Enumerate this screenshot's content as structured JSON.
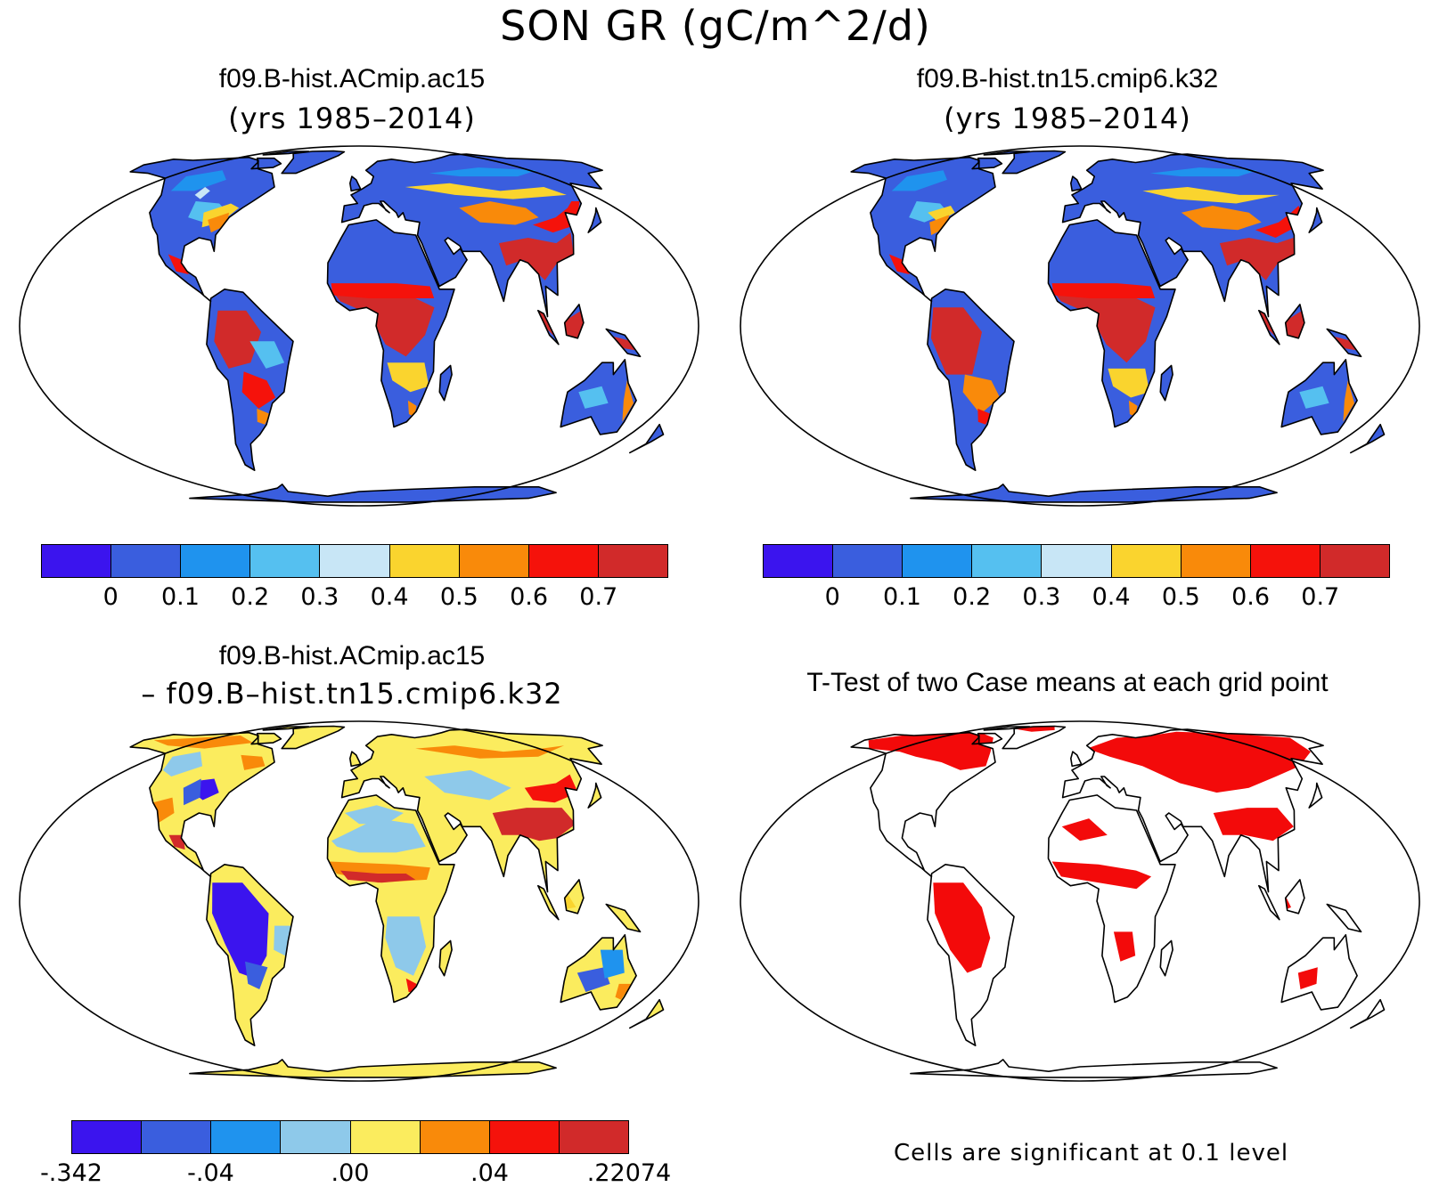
{
  "suptitle": "SON GR (gC/m^2/d)",
  "panels": {
    "top_left": {
      "title": "f09.B-hist.ACmip.ac15",
      "subtitle": "(yrs 1985–2014)"
    },
    "top_right": {
      "title": "f09.B-hist.tn15.cmip6.k32",
      "subtitle": "(yrs 1985–2014)"
    },
    "bottom_left": {
      "title": "f09.B-hist.ACmip.ac15",
      "subtitle": "– f09.B–hist.tn15.cmip6.k32"
    },
    "bottom_right": {
      "title": "T-Test of two Case means at each grid point",
      "note": "Cells are significant at 0.1 level"
    }
  },
  "colorbar_main": {
    "colors": [
      "#3b14ee",
      "#3a5ede",
      "#1f93ee",
      "#55c0f0",
      "#c8e6f6",
      "#fad42e",
      "#f98a0a",
      "#f5120b",
      "#d12a2a"
    ],
    "ticks": [
      "0",
      "0.1",
      "0.2",
      "0.3",
      "0.4",
      "0.5",
      "0.6",
      "0.7"
    ]
  },
  "colorbar_diff": {
    "colors": [
      "#3b14ee",
      "#3a5ede",
      "#1f93ee",
      "#8ec9ea",
      "#fbec5e",
      "#f98a0a",
      "#f5120b",
      "#d12a2a"
    ],
    "ticks": [
      "-.342",
      "-.04",
      ".00",
      ".04",
      ".22074"
    ]
  },
  "colors": {
    "ocean": "#ffffff",
    "coast": "#000000",
    "significant": "#f30a0a"
  }
}
